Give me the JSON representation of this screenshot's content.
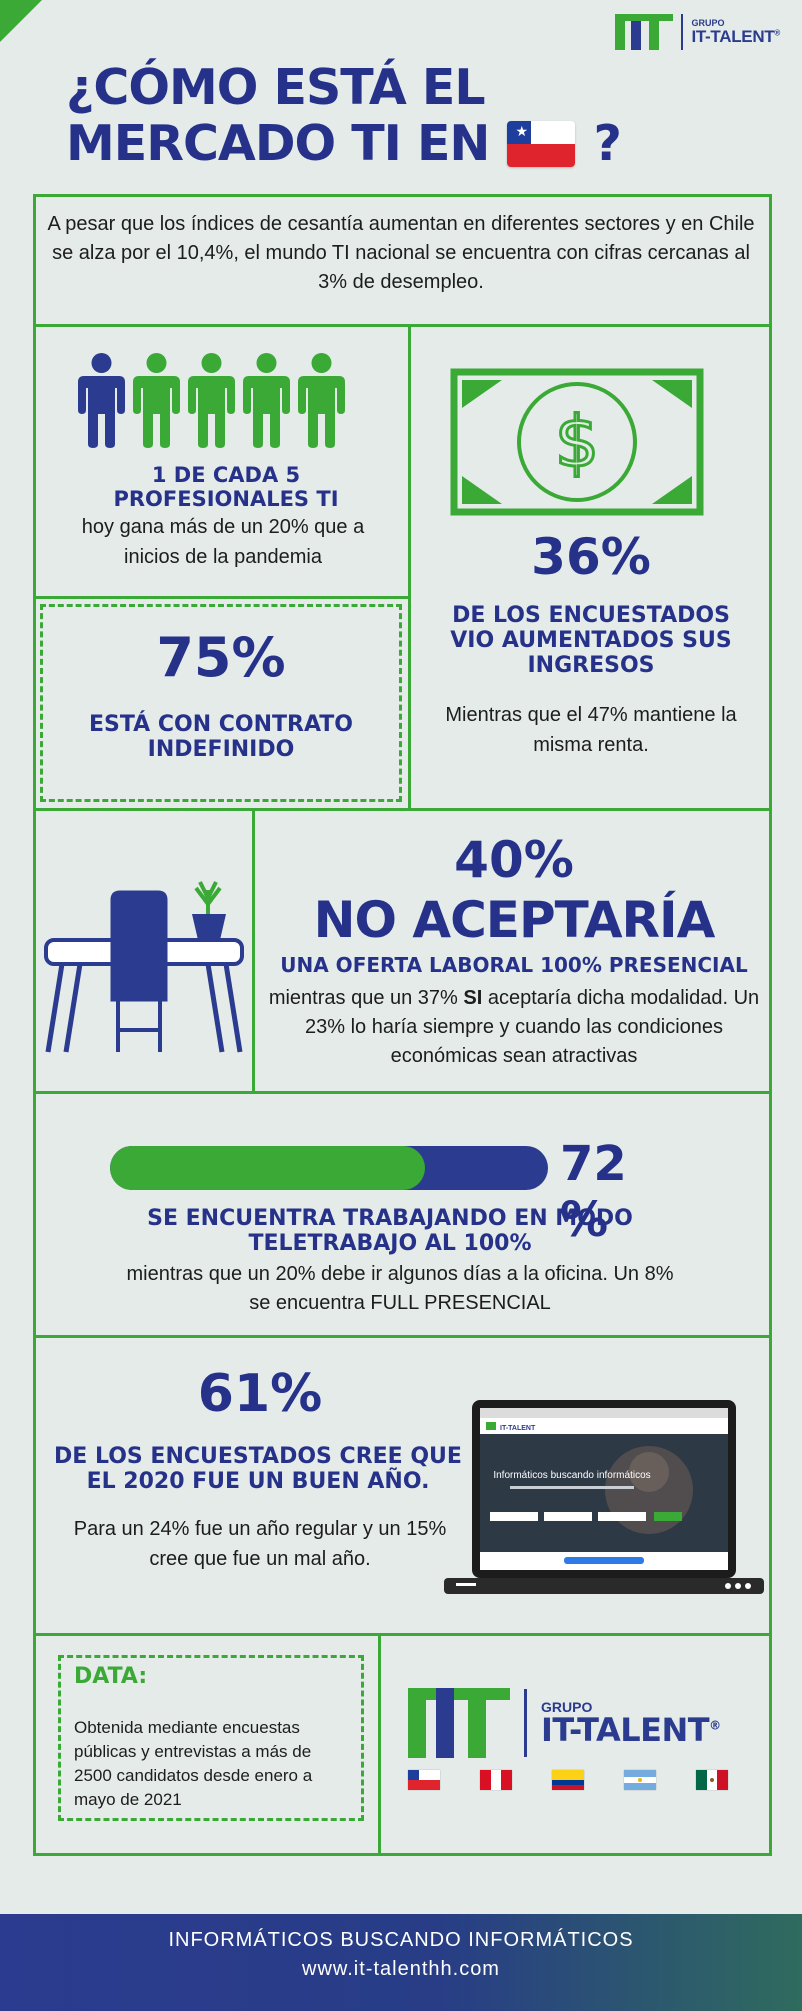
{
  "brand": {
    "group": "GRUPO",
    "name": "IT-TALENT",
    "registered": "®"
  },
  "title": {
    "line1": "¿CÓMO ESTÁ EL",
    "line2": "MERCADO TI EN",
    "question": "?",
    "flag_icon": "chile-flag"
  },
  "intro": "A pesar que los índices de cesantía aumentan en diferentes sectores y en Chile se alza por el 10,4%, el mundo TI nacional se encuentra con cifras cercanas al 3% de desempleo.",
  "stat_professionals": {
    "headline": "1 DE CADA 5 PROFESIONALES TI",
    "text": "hoy gana más de un 20% que a inicios de la pandemia",
    "people_total": 5,
    "people_highlighted": 1,
    "colors": {
      "highlight": "#2b3b8f",
      "rest": "#3aa935"
    }
  },
  "stat_contract": {
    "value": "75%",
    "text": "ESTÁ CON CONTRATO INDEFINIDO"
  },
  "stat_income": {
    "value": "36%",
    "headline": "DE LOS ENCUESTADOS VIO AUMENTADOS SUS INGRESOS",
    "text": "Mientras que el 47% mantiene la misma renta."
  },
  "stat_presencial": {
    "value": "40%",
    "headline": "NO ACEPTARÍA",
    "subhead": "UNA OFERTA LABORAL 100% PRESENCIAL",
    "text_before": "mientras que un 37%",
    "text_bold": "SI",
    "text_after": "aceptaría dicha modalidad. Un 23% lo haría siempre y cuando las condiciones económicas sean atractivas"
  },
  "stat_remote": {
    "value": "72 %",
    "progress": 0.72,
    "headline": "SE ENCUENTRA TRABAJANDO EN MODO TELETRABAJO AL 100%",
    "text": "mientras que un 20% debe ir algunos días a la oficina. Un 8% se encuentra FULL PRESENCIAL"
  },
  "stat_year": {
    "value": "61%",
    "headline": "DE LOS ENCUESTADOS CREE QUE EL 2020 FUE UN BUEN AÑO.",
    "text": "Para un 24% fue un año regular y un 15% cree que fue un mal año.",
    "laptop_screen_title": "Informáticos buscando informáticos"
  },
  "data_box": {
    "title": "DATA:",
    "text": "Obtenida mediante encuestas públicas y entrevistas a más de 2500 candidatos desde enero a mayo de 2021"
  },
  "footer_flags": [
    "chile-flag",
    "peru-flag",
    "colombia-flag",
    "argentina-flag",
    "mexico-flag"
  ],
  "footer": {
    "tagline": "INFORMÁTICOS BUSCANDO INFORMÁTICOS",
    "url": "www.it-talenthh.com"
  }
}
